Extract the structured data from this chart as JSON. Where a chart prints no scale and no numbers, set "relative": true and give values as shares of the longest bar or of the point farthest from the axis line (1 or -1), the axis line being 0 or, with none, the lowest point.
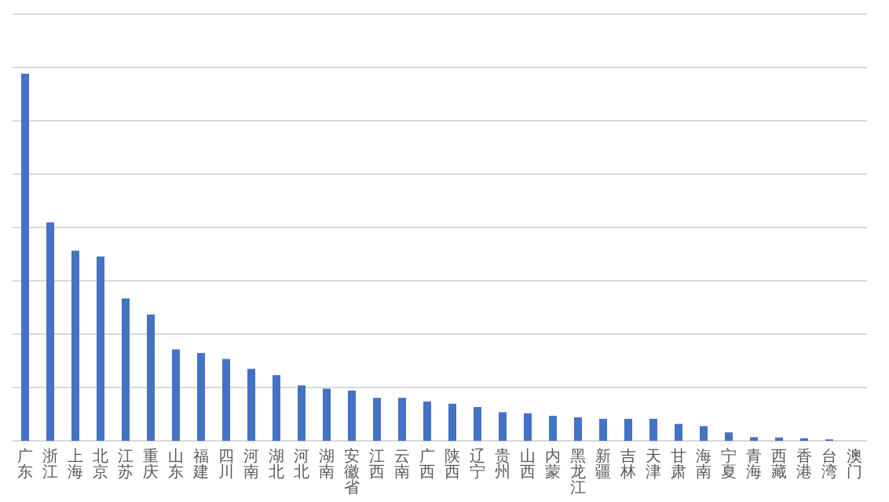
{
  "chart_data": {
    "type": "bar",
    "relative": true,
    "grid": "y",
    "color": "#4472c4",
    "categories": [
      "广东",
      "浙江",
      "上海",
      "北京",
      "江苏",
      "重庆",
      "山东",
      "福建",
      "四川",
      "河南",
      "湖北",
      "河北",
      "湖南",
      "安徽省",
      "江西",
      "云南",
      "广西",
      "陕西",
      "辽宁",
      "贵州",
      "山西",
      "内蒙",
      "黑龙江",
      "新疆",
      "吉林",
      "天津",
      "甘肃",
      "海南",
      "宁夏",
      "青海",
      "西藏",
      "香港",
      "台湾",
      "澳门"
    ],
    "values": [
      1,
      0.595,
      0.518,
      0.502,
      0.388,
      0.344,
      0.249,
      0.239,
      0.223,
      0.196,
      0.179,
      0.151,
      0.142,
      0.137,
      0.117,
      0.117,
      0.107,
      0.101,
      0.092,
      0.078,
      0.075,
      0.068,
      0.064,
      0.06,
      0.06,
      0.06,
      0.046,
      0.04,
      0.023,
      0.01,
      0.009,
      0.007,
      0.004,
      0
    ]
  }
}
